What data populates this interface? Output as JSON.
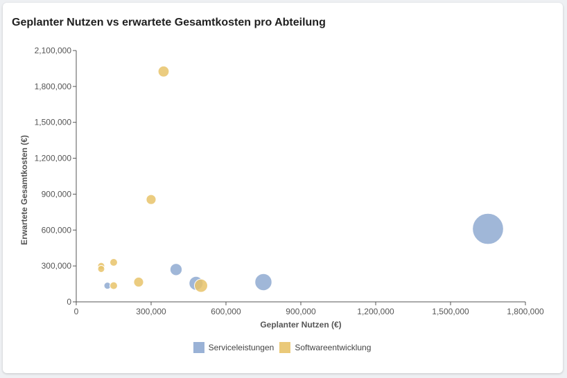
{
  "chart_data": {
    "type": "scatter",
    "title": "Geplanter Nutzen vs erwartete Gesamtkosten pro Abteilung",
    "xlabel": "Geplanter Nutzen (€)",
    "ylabel": "Erwartete Gesamtkosten (€)",
    "xlim": [
      0,
      1800000
    ],
    "ylim": [
      0,
      2100000
    ],
    "x_ticks": [
      0,
      300000,
      600000,
      900000,
      1200000,
      1500000,
      1800000
    ],
    "x_tick_labels": [
      "0",
      "300,000",
      "600,000",
      "900,000",
      "1,200,000",
      "1,500,000",
      "1,800,000"
    ],
    "y_ticks": [
      0,
      300000,
      600000,
      900000,
      1200000,
      1500000,
      1800000,
      2100000
    ],
    "y_tick_labels": [
      "0",
      "300,000",
      "600,000",
      "900,000",
      "1,200,000",
      "1,500,000",
      "1,800,000",
      "2,100,000"
    ],
    "legend_position": "bottom-center",
    "series": [
      {
        "name": "Serviceleistungen",
        "color": "#8faad1",
        "points": [
          {
            "x": 125000,
            "y": 135000,
            "size": 1
          },
          {
            "x": 400000,
            "y": 270000,
            "size": 3
          },
          {
            "x": 480000,
            "y": 155000,
            "size": 4
          },
          {
            "x": 750000,
            "y": 165000,
            "size": 6
          },
          {
            "x": 1650000,
            "y": 610000,
            "size": 20
          }
        ]
      },
      {
        "name": "Softwareentwicklung",
        "color": "#e8c36a",
        "points": [
          {
            "x": 100000,
            "y": 300000,
            "size": 1
          },
          {
            "x": 100000,
            "y": 275000,
            "size": 1
          },
          {
            "x": 150000,
            "y": 330000,
            "size": 1.2
          },
          {
            "x": 150000,
            "y": 135000,
            "size": 1.2
          },
          {
            "x": 250000,
            "y": 165000,
            "size": 2
          },
          {
            "x": 300000,
            "y": 855000,
            "size": 2
          },
          {
            "x": 350000,
            "y": 1925000,
            "size": 2.5
          },
          {
            "x": 500000,
            "y": 135000,
            "size": 3.6
          }
        ]
      }
    ]
  }
}
